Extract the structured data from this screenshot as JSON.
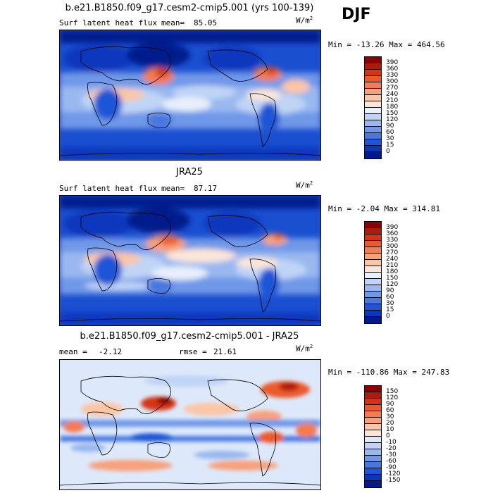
{
  "season": "DJF",
  "panels": [
    {
      "title": "b.e21.B1850.f09_g17.cesm2-cmip5.001 (yrs 100-139)",
      "left_label": "Surf latent heat flux",
      "mean_label": "mean=",
      "mean_value": "85.05",
      "units_base": "W/m",
      "units_exp": "2",
      "minmax": "Min = -13.26 Max = 464.56",
      "colorbar_labels": [
        "390",
        "360",
        "330",
        "300",
        "270",
        "240",
        "210",
        "180",
        "150",
        "120",
        "90",
        "60",
        "30",
        "15",
        "0"
      ],
      "colorbar_colors": [
        "#8b0000",
        "#b01a0a",
        "#d43414",
        "#ec5a2a",
        "#f47c50",
        "#f8a07a",
        "#fbc6a6",
        "#fde6d8",
        "#e8f0fb",
        "#c0d4f5",
        "#99b8ef",
        "#6f98e8",
        "#4778e0",
        "#1f56d6",
        "#0a38bd",
        "#001a8c"
      ]
    },
    {
      "title": "JRA25",
      "left_label": "Surf latent heat flux",
      "mean_label": "mean=",
      "mean_value": "87.17",
      "units_base": "W/m",
      "units_exp": "2",
      "minmax": "Min = -2.04 Max = 314.81",
      "colorbar_labels": [
        "390",
        "360",
        "330",
        "300",
        "270",
        "240",
        "210",
        "180",
        "150",
        "120",
        "90",
        "60",
        "30",
        "15",
        "0"
      ],
      "colorbar_colors": [
        "#8b0000",
        "#b01a0a",
        "#d43414",
        "#ec5a2a",
        "#f47c50",
        "#f8a07a",
        "#fbc6a6",
        "#fde6d8",
        "#e8f0fb",
        "#c0d4f5",
        "#99b8ef",
        "#6f98e8",
        "#4778e0",
        "#1f56d6",
        "#0a38bd",
        "#001a8c"
      ]
    },
    {
      "title": "b.e21.B1850.f09_g17.cesm2-cmip5.001 - JRA25",
      "left_label": "mean =",
      "mean_label": "",
      "mean_value": "-2.12",
      "rmse_label": "rmse =",
      "rmse_value": "21.61",
      "units_base": "W/m",
      "units_exp": "2",
      "minmax": "Min = -110.86 Max = 247.83",
      "colorbar_labels": [
        "150",
        "120",
        "90",
        "60",
        "30",
        "20",
        "10",
        "0",
        "-10",
        "-20",
        "-30",
        "-60",
        "-90",
        "-120",
        "-150"
      ],
      "colorbar_colors": [
        "#8b0000",
        "#b01a0a",
        "#d43414",
        "#ec5a2a",
        "#f47c50",
        "#f8a07a",
        "#fbc6a6",
        "#fde6d8",
        "#dde9fa",
        "#c0d4f5",
        "#99b8ef",
        "#6f98e8",
        "#4778e0",
        "#1f56d6",
        "#0a38bd",
        "#001a8c"
      ]
    }
  ]
}
